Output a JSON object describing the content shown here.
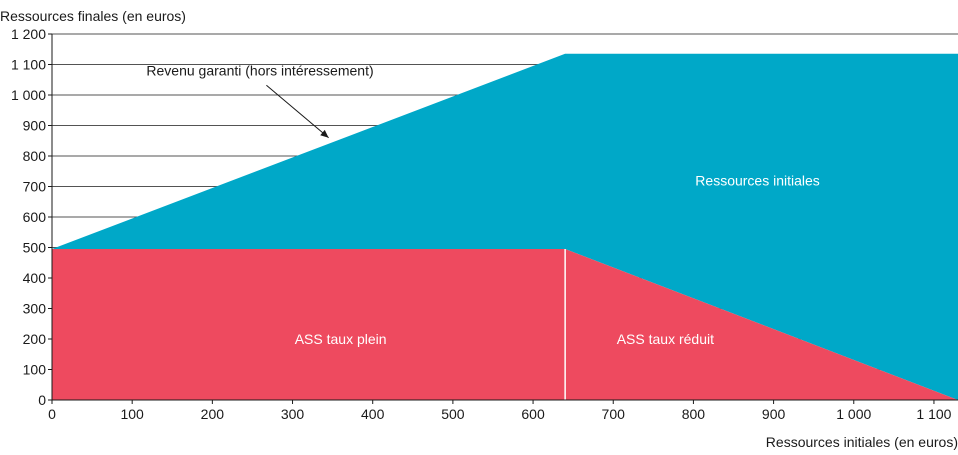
{
  "chart_data": {
    "type": "area",
    "ylabel": "Ressources finales (en euros)",
    "xlabel": "Ressources initiales (en euros)",
    "xlim": [
      0,
      1130
    ],
    "ylim": [
      0,
      1200
    ],
    "x_ticks": [
      0,
      100,
      200,
      300,
      400,
      500,
      600,
      700,
      800,
      900,
      1000,
      1100
    ],
    "x_tick_labels": [
      "0",
      "100",
      "200",
      "300",
      "400",
      "500",
      "600",
      "700",
      "800",
      "900",
      "1 000",
      "1 100"
    ],
    "y_ticks": [
      0,
      100,
      200,
      300,
      400,
      500,
      600,
      700,
      800,
      900,
      1000,
      1100,
      1200
    ],
    "y_tick_labels": [
      "0",
      "100",
      "200",
      "300",
      "400",
      "500",
      "600",
      "700",
      "800",
      "900",
      "1 000",
      "1 100",
      "1 200"
    ],
    "grid": true,
    "series": [
      {
        "name": "ASS taux plein",
        "color": "#ee4a5f",
        "x": [
          0,
          640
        ],
        "y": [
          495,
          495
        ]
      },
      {
        "name": "ASS taux réduit",
        "color": "#ee4a5f",
        "x": [
          640,
          1130
        ],
        "y": [
          495,
          0
        ]
      },
      {
        "name": "Ressources initiales",
        "color": "#00a8c8",
        "x": [
          0,
          640,
          1130
        ],
        "y": [
          495,
          1135,
          1135
        ]
      }
    ],
    "divider_x": 640,
    "annotation": {
      "text": "Revenu garanti (hors intéressement)",
      "target": [
        345,
        860
      ],
      "text_anchor": [
        230,
        1045
      ]
    }
  }
}
